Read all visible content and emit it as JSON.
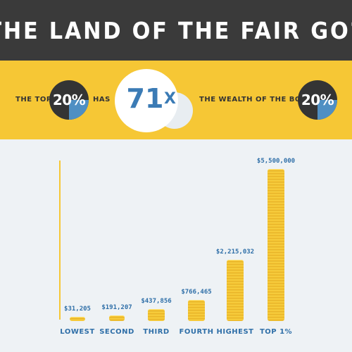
{
  "header": {
    "title": "THE LAND OF THE FAIR GO?"
  },
  "stat": {
    "prefix": "THE TOP",
    "top_pct": "20%",
    "has": "HAS",
    "multiple": "71",
    "times": "X",
    "suffix": "THE WEALTH OF THE BOTTOM",
    "bottom_pct": "20%"
  },
  "colors": {
    "dark": "#3a3a3a",
    "yellow": "#f6c735",
    "blue": "#3b7bb5",
    "background": "#eef2f5"
  },
  "chart_data": {
    "type": "bar",
    "categories": [
      "LOWEST",
      "SECOND",
      "THIRD",
      "FOURTH",
      "HIGHEST",
      "TOP 1%"
    ],
    "values": [
      31205,
      191207,
      437856,
      766465,
      2215032,
      5500000
    ],
    "value_labels": [
      "$31,205",
      "$191,207",
      "$437,856",
      "$766,465",
      "$2,215,032",
      "$5,500,000"
    ],
    "title": "",
    "xlabel": "",
    "ylabel": "",
    "ylim": [
      0,
      5500000
    ]
  }
}
